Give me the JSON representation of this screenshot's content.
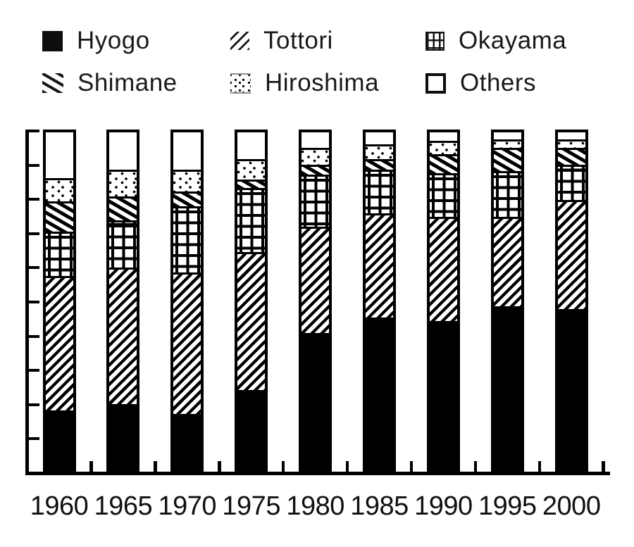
{
  "legend": {
    "items": [
      {
        "label": "Hyogo",
        "pattern": "solid-black"
      },
      {
        "label": "Tottori",
        "pattern": "diagonal-slash"
      },
      {
        "label": "Okayama",
        "pattern": "grid"
      },
      {
        "label": "Shimane",
        "pattern": "diagonal-backslash"
      },
      {
        "label": "Hiroshima",
        "pattern": "dots"
      },
      {
        "label": "Others",
        "pattern": "plain-white"
      }
    ]
  },
  "chart_data": {
    "type": "bar",
    "subtype": "100-percent-stacked-column",
    "title": "",
    "xlabel": "",
    "ylabel": "",
    "categories": [
      "1960",
      "1965",
      "1970",
      "1975",
      "1980",
      "1985",
      "1990",
      "1995",
      "2000"
    ],
    "series": [
      {
        "name": "Hyogo",
        "pattern": "solid-black",
        "values": [
          17.5,
          19.5,
          16.5,
          23.5,
          40.5,
          45.0,
          44.0,
          48.5,
          47.5
        ]
      },
      {
        "name": "Tottori",
        "pattern": "diagonal-slash",
        "values": [
          40.0,
          40.5,
          42.0,
          41.0,
          31.5,
          31.0,
          31.0,
          26.5,
          32.5
        ]
      },
      {
        "name": "Okayama",
        "pattern": "grid",
        "values": [
          13.0,
          14.0,
          19.5,
          19.0,
          15.5,
          13.0,
          13.0,
          13.5,
          10.5
        ]
      },
      {
        "name": "Shimane",
        "pattern": "diagonal-backslash",
        "values": [
          9.0,
          7.0,
          4.5,
          2.5,
          3.0,
          3.0,
          5.5,
          7.0,
          5.0
        ]
      },
      {
        "name": "Hiroshima",
        "pattern": "dots",
        "values": [
          7.0,
          8.0,
          6.5,
          6.0,
          5.0,
          4.5,
          4.0,
          2.5,
          2.5
        ]
      },
      {
        "name": "Others",
        "pattern": "plain-white",
        "values": [
          13.5,
          11.0,
          11.0,
          8.0,
          4.5,
          3.5,
          2.5,
          2.0,
          2.0
        ]
      }
    ],
    "stack_order": "bottom-to-top",
    "y_axis": {
      "min": 0,
      "max": 100,
      "tick_step": 10,
      "tick_labels_visible": false
    },
    "x_axis": {
      "tick_marks_between_bars": true,
      "tick_labels_visible": true
    },
    "legend_position": "top",
    "grid": false,
    "colors": {
      "foreground": "#000000",
      "background": "#ffffff"
    }
  }
}
